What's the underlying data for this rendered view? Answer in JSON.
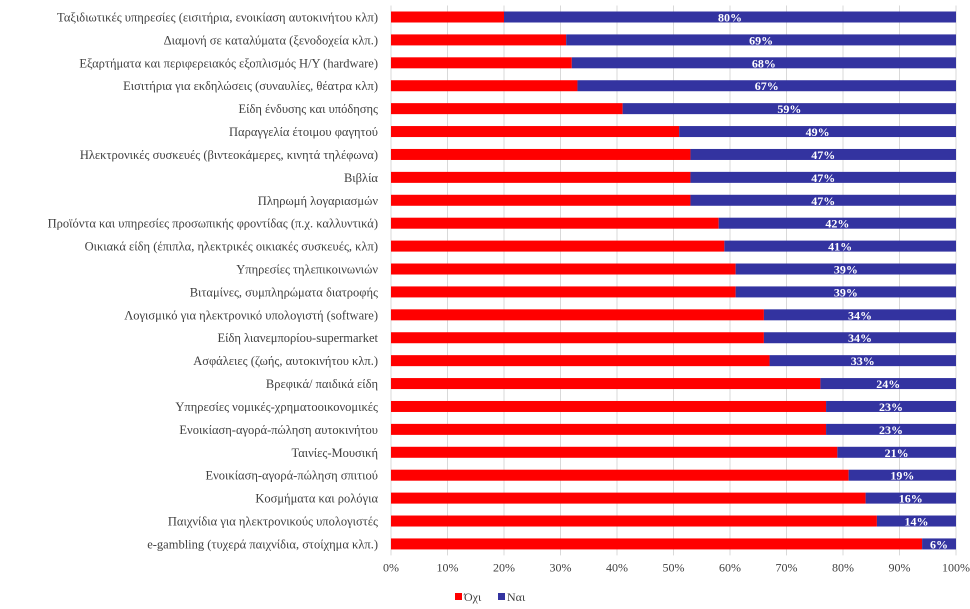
{
  "chart_data": {
    "type": "bar",
    "orientation": "horizontal",
    "stacked": "percent",
    "title": "",
    "xlabel": "",
    "ylabel": "",
    "xlim": [
      0,
      100
    ],
    "x_ticks": [
      "0%",
      "10%",
      "20%",
      "30%",
      "40%",
      "50%",
      "60%",
      "70%",
      "80%",
      "90%",
      "100%"
    ],
    "grid": true,
    "legend_position": "bottom-left",
    "categories": [
      "Ταξιδιωτικές υπηρεσίες (εισιτήρια, ενοικίαση αυτοκινήτου κλπ)",
      "Διαμονή σε καταλύματα (ξενοδοχεία κλπ.)",
      "Εξαρτήματα και περιφερειακός εξοπλισμός Η/Υ (hardware)",
      "Εισιτήρια για εκδηλώσεις (συναυλίες, θέατρα κλπ)",
      "Είδη ένδυσης και υπόδησης",
      "Παραγγελία έτοιμου φαγητού",
      "Ηλεκτρονικές συσκευές (βιντεοκάμερες, κινητά τηλέφωνα)",
      "Βιβλία",
      "Πληρωμή λογαριασμών",
      "Προϊόντα και υπηρεσίες προσωπικής φροντίδας (π.χ. καλλυντικά)",
      "Οικιακά είδη (έπιπλα, ηλεκτρικές οικιακές συσκευές, κλπ)",
      "Υπηρεσίες τηλεπικοινωνιών",
      "Βιταμίνες, συμπληρώματα διατροφής",
      "Λογισμικό για ηλεκτρονικό υπολογιστή (software)",
      "Είδη λιανεμπορίου-supermarket",
      "Ασφάλειες (ζωής, αυτοκινήτου κλπ.)",
      "Βρεφικά/ παιδικά είδη",
      "Υπηρεσίες νομικές-χρηματοοικονομικές",
      "Ενοικίαση-αγορά-πώληση αυτοκινήτου",
      "Ταινίες-Μουσική",
      "Ενοικίαση-αγορά-πώληση σπιτιού",
      "Κοσμήματα και ρολόγια",
      "Παιχνίδια για ηλεκτρονικούς υπολογιστές",
      "e-gambling (τυχερά παιχνίδια, στοίχημα κλπ.)"
    ],
    "series": [
      {
        "name": "Όχι",
        "color": "#ff0000",
        "values": [
          20,
          31,
          32,
          33,
          41,
          51,
          53,
          53,
          53,
          58,
          59,
          61,
          61,
          66,
          66,
          67,
          76,
          77,
          77,
          79,
          81,
          84,
          86,
          94
        ]
      },
      {
        "name": "Ναι",
        "color": "#3333a0",
        "values": [
          80,
          69,
          68,
          67,
          59,
          49,
          47,
          47,
          47,
          42,
          41,
          39,
          39,
          34,
          34,
          33,
          24,
          23,
          23,
          21,
          19,
          16,
          14,
          6
        ],
        "data_labels": [
          "80%",
          "69%",
          "68%",
          "67%",
          "59%",
          "49%",
          "47%",
          "47%",
          "47%",
          "42%",
          "41%",
          "39%",
          "39%",
          "34%",
          "34%",
          "33%",
          "24%",
          "23%",
          "23%",
          "21%",
          "19%",
          "16%",
          "14%",
          "6%"
        ]
      }
    ]
  }
}
